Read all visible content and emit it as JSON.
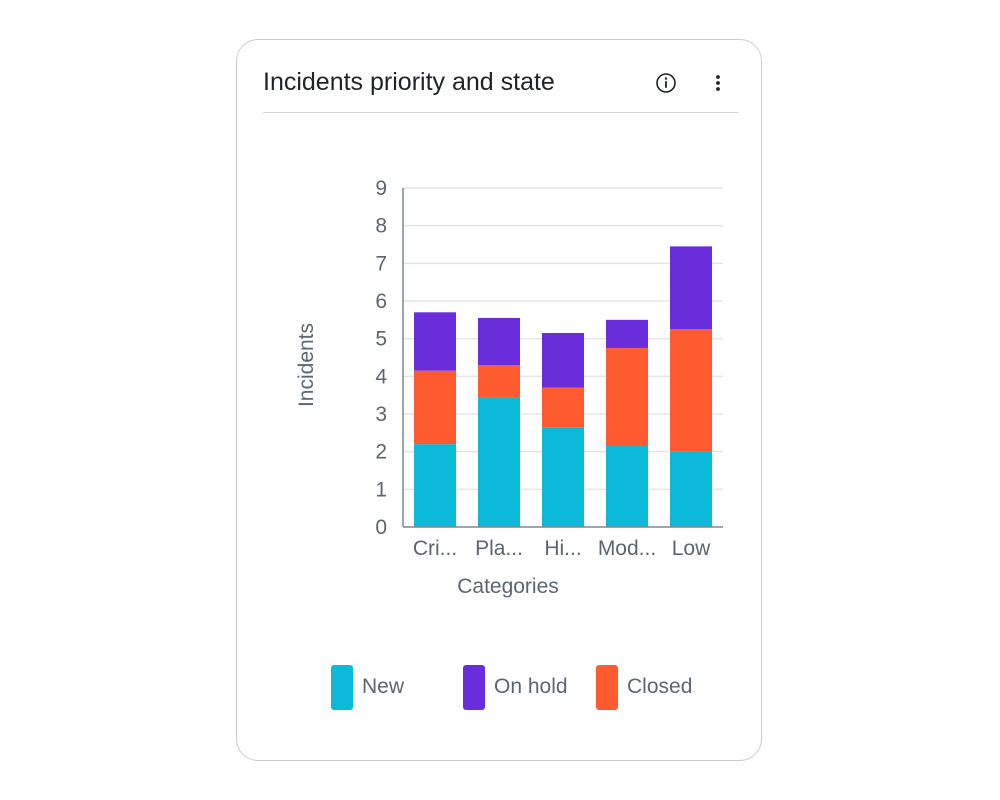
{
  "card": {
    "title": "Incidents priority and state",
    "info_icon": "info-circle-icon",
    "menu_icon": "more-vertical-icon"
  },
  "chart_data": {
    "type": "bar",
    "stacked": true,
    "title": "Incidents priority and state",
    "xlabel": "Categories",
    "ylabel": "Incidents",
    "categories": [
      "Cri...",
      "Pla...",
      "Hi...",
      "Mod...",
      "Low"
    ],
    "ylim": [
      0,
      9
    ],
    "yticks": [
      0,
      1,
      2,
      3,
      4,
      5,
      6,
      7,
      8,
      9
    ],
    "grid": true,
    "legend_position": "bottom",
    "series": [
      {
        "name": "New",
        "color": "#0bbad9",
        "values": [
          2.2,
          3.45,
          2.65,
          2.15,
          2.0
        ]
      },
      {
        "name": "Closed",
        "color": "#ff5a30",
        "values": [
          1.95,
          0.85,
          1.05,
          2.6,
          3.25
        ]
      },
      {
        "name": "On hold",
        "color": "#6a2ddc",
        "values": [
          1.55,
          1.25,
          1.45,
          0.75,
          2.2
        ]
      }
    ],
    "legend": [
      {
        "name": "New",
        "color": "#0bbad9"
      },
      {
        "name": "On hold",
        "color": "#6a2ddc"
      },
      {
        "name": "Closed",
        "color": "#ff5a30"
      }
    ]
  }
}
